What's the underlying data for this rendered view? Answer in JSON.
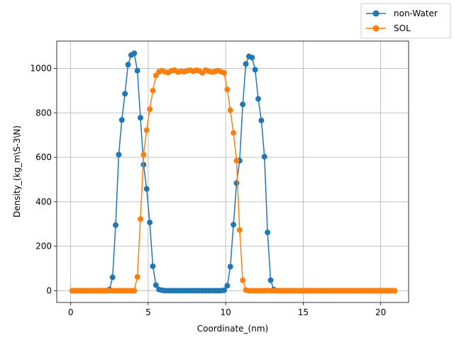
{
  "chart_data": {
    "type": "line",
    "xlabel": "Coordinate_(nm)",
    "ylabel": "Density_(kg_m\\S-3\\N)",
    "xlim": [
      -0.9,
      21.8
    ],
    "ylim": [
      -53,
      1123
    ],
    "xticks": [
      0,
      5,
      10,
      15,
      20
    ],
    "yticks": [
      0,
      200,
      400,
      600,
      800,
      1000
    ],
    "grid": true,
    "legend_position": "top-right",
    "x": [
      0.1,
      0.3,
      0.5,
      0.7,
      0.9,
      1.1,
      1.3,
      1.5,
      1.7,
      1.9,
      2.1,
      2.3,
      2.5,
      2.7,
      2.9,
      3.1,
      3.3,
      3.5,
      3.7,
      3.9,
      4.1,
      4.3,
      4.5,
      4.7,
      4.9,
      5.1,
      5.3,
      5.5,
      5.7,
      5.9,
      6.1,
      6.3,
      6.5,
      6.7,
      6.9,
      7.1,
      7.3,
      7.5,
      7.7,
      7.9,
      8.1,
      8.3,
      8.5,
      8.7,
      8.9,
      9.1,
      9.3,
      9.5,
      9.7,
      9.9,
      10.1,
      10.3,
      10.5,
      10.7,
      10.9,
      11.1,
      11.3,
      11.5,
      11.7,
      11.9,
      12.1,
      12.3,
      12.5,
      12.7,
      12.9,
      13.1,
      13.3,
      13.5,
      13.7,
      13.9,
      14.1,
      14.3,
      14.5,
      14.7,
      14.9,
      15.1,
      15.3,
      15.5,
      15.7,
      15.9,
      16.1,
      16.3,
      16.5,
      16.7,
      16.9,
      17.1,
      17.3,
      17.5,
      17.7,
      17.9,
      18.1,
      18.3,
      18.5,
      18.7,
      18.9,
      19.1,
      19.3,
      19.5,
      19.7,
      19.9,
      20.1,
      20.3,
      20.5,
      20.7,
      20.9
    ],
    "series": [
      {
        "name": "non-Water",
        "color": "#1f77b4",
        "values": [
          0,
          0,
          0,
          0,
          0,
          0,
          0,
          0,
          0,
          0,
          0,
          0,
          5,
          60,
          295,
          612,
          768,
          886,
          1017,
          1060,
          1068,
          990,
          778,
          567,
          458,
          307,
          110,
          25,
          5,
          2,
          0,
          0,
          0,
          0,
          0,
          0,
          0,
          0,
          0,
          0,
          0,
          0,
          0,
          0,
          0,
          0,
          0,
          0,
          0,
          2,
          22,
          108,
          297,
          484,
          585,
          838,
          1020,
          1054,
          1049,
          994,
          863,
          766,
          603,
          262,
          47,
          5,
          0,
          0,
          0,
          0,
          0,
          0,
          0,
          0,
          0,
          0,
          0,
          0,
          0,
          0,
          0,
          0,
          0,
          0,
          0,
          0,
          0,
          0,
          0,
          0,
          0,
          0,
          0,
          0,
          0,
          0,
          0,
          0,
          0,
          0,
          0,
          0,
          0,
          0,
          0
        ]
      },
      {
        "name": "SOL",
        "color": "#ff7f0e",
        "values": [
          0,
          0,
          0,
          0,
          0,
          0,
          0,
          0,
          0,
          0,
          0,
          0,
          0,
          0,
          0,
          0,
          0,
          0,
          0,
          0,
          0,
          62,
          322,
          612,
          722,
          816,
          900,
          968,
          985,
          990,
          984,
          982,
          989,
          992,
          984,
          987,
          985,
          989,
          992,
          987,
          992,
          989,
          980,
          992,
          987,
          984,
          986,
          990,
          985,
          980,
          905,
          812,
          710,
          585,
          273,
          47,
          3,
          0,
          0,
          0,
          0,
          0,
          0,
          0,
          0,
          0,
          0,
          0,
          0,
          0,
          0,
          0,
          0,
          0,
          0,
          0,
          0,
          0,
          0,
          0,
          0,
          0,
          0,
          0,
          0,
          0,
          0,
          0,
          0,
          0,
          0,
          0,
          0,
          0,
          0,
          0,
          0,
          0,
          0,
          0,
          0,
          0,
          0,
          0,
          0
        ]
      }
    ]
  }
}
